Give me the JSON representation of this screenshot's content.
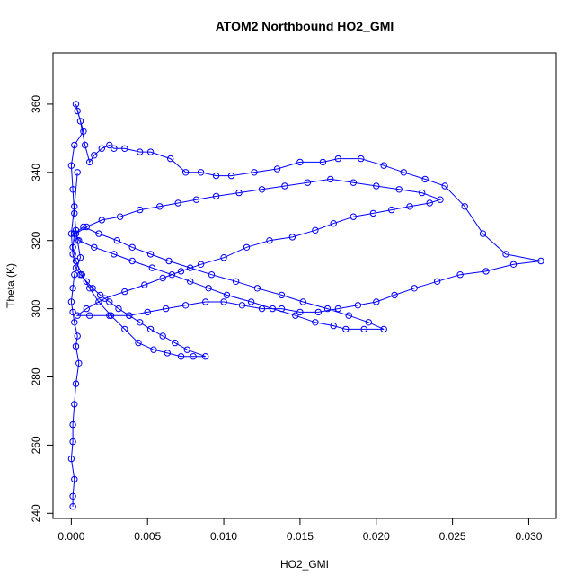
{
  "chart_data": {
    "type": "scatter",
    "title": "ATOM2 Northbound HO2_GMI",
    "xlabel": "HO2_GMI",
    "ylabel": "Theta (K)",
    "xlim": [
      -0.0012,
      0.0318
    ],
    "ylim": [
      238.5,
      375
    ],
    "xticks": [
      "0.000",
      "0.005",
      "0.010",
      "0.015",
      "0.020",
      "0.025",
      "0.030"
    ],
    "yticks": [
      "240",
      "260",
      "280",
      "300",
      "320",
      "340",
      "360"
    ],
    "grid": false,
    "color": "#0000ff",
    "marker": "open-circle",
    "connected": true,
    "series": [
      {
        "x": [
          0.0001,
          0.0001,
          0.0002,
          0.0,
          0.0001,
          0.0001,
          0.0002,
          0.0003,
          0.0005,
          0.0003,
          0.0004,
          0.0002,
          0.0001,
          0.0,
          0.0001,
          0.0002,
          0.0006,
          0.0004,
          0.0003,
          0.0002,
          0.0001,
          0.0,
          0.0002,
          0.0008,
          0.0004,
          0.0003,
          0.0006,
          0.0009,
          0.0012,
          0.0015,
          0.002,
          0.0025,
          0.0028,
          0.0035,
          0.0045,
          0.0052,
          0.0065,
          0.0075,
          0.0085,
          0.0095,
          0.0105,
          0.012,
          0.0135,
          0.015,
          0.0165,
          0.0175,
          0.019,
          0.0205,
          0.0218,
          0.0232,
          0.0245,
          0.0258,
          0.027,
          0.0285,
          0.0308,
          0.029,
          0.0272,
          0.0255,
          0.024,
          0.0225,
          0.0212,
          0.02,
          0.0188,
          0.0175,
          0.0162,
          0.015,
          0.0138,
          0.0125,
          0.0112,
          0.01,
          0.0088,
          0.0075,
          0.0062,
          0.005,
          0.0038,
          0.0025,
          0.0012,
          0.0004,
          0.001,
          0.0022,
          0.0035,
          0.0048,
          0.006,
          0.0072,
          0.0085,
          0.01,
          0.0115,
          0.013,
          0.0145,
          0.016,
          0.0172,
          0.0185,
          0.0198,
          0.021,
          0.0222,
          0.0235,
          0.0242,
          0.023,
          0.0215,
          0.02,
          0.0185,
          0.017,
          0.0155,
          0.014,
          0.0125,
          0.011,
          0.0095,
          0.0082,
          0.007,
          0.0058,
          0.0045,
          0.0032,
          0.002,
          0.001,
          0.0003,
          0.0005,
          0.0015,
          0.0028,
          0.004,
          0.0053,
          0.0066,
          0.0078,
          0.009,
          0.0102,
          0.0118,
          0.0132,
          0.0147,
          0.016,
          0.0172,
          0.018,
          0.0192,
          0.0205,
          0.0195,
          0.0182,
          0.0168,
          0.0152,
          0.0138,
          0.0122,
          0.0108,
          0.0092,
          0.0078,
          0.0064,
          0.0052,
          0.004,
          0.003,
          0.0018,
          0.0008,
          0.0002,
          0.0001,
          0.0003,
          0.0007,
          0.0012,
          0.0018,
          0.0026,
          0.0035,
          0.0044,
          0.0054,
          0.0063,
          0.0072,
          0.008,
          0.0088,
          0.0076,
          0.0068,
          0.006,
          0.0052,
          0.0045,
          0.0038,
          0.0031,
          0.0025,
          0.0019,
          0.0014,
          0.001,
          0.0006,
          0.0003,
          0.0001,
          0.0,
          0.0002,
          0.0004
        ],
        "y": [
          242,
          245,
          250,
          256,
          261,
          266,
          272,
          278,
          284,
          289,
          292,
          296,
          299,
          302,
          306,
          310,
          315,
          320,
          323,
          328,
          335,
          342,
          348,
          352,
          358,
          360,
          355,
          348,
          343,
          345,
          347,
          348,
          347,
          347,
          346,
          346,
          344,
          340,
          340,
          339,
          339,
          340,
          341,
          343,
          343,
          344,
          344,
          342,
          340,
          338,
          336,
          330,
          322,
          316,
          314,
          313,
          311,
          310,
          308,
          306,
          304,
          302,
          301,
          300,
          299,
          299,
          300,
          300,
          301,
          302,
          302,
          301,
          300,
          299,
          298,
          298,
          298,
          298,
          300,
          303,
          305,
          307,
          309,
          311,
          313,
          315,
          318,
          320,
          321,
          323,
          325,
          327,
          328,
          329,
          330,
          331,
          332,
          334,
          335,
          336,
          337,
          338,
          337,
          336,
          335,
          334,
          333,
          332,
          331,
          330,
          329,
          327,
          326,
          324,
          322,
          320,
          318,
          316,
          314,
          312,
          310,
          308,
          306,
          304,
          302,
          300,
          298,
          296,
          295,
          294,
          294,
          294,
          296,
          298,
          300,
          302,
          304,
          306,
          308,
          310,
          312,
          314,
          316,
          318,
          320,
          322,
          324,
          322,
          318,
          314,
          310,
          306,
          302,
          298,
          294,
          290,
          288,
          287,
          286,
          286,
          286,
          288,
          290,
          292,
          294,
          296,
          298,
          300,
          302,
          304,
          306,
          308,
          310,
          312,
          316,
          322,
          330,
          340
        ]
      }
    ]
  }
}
